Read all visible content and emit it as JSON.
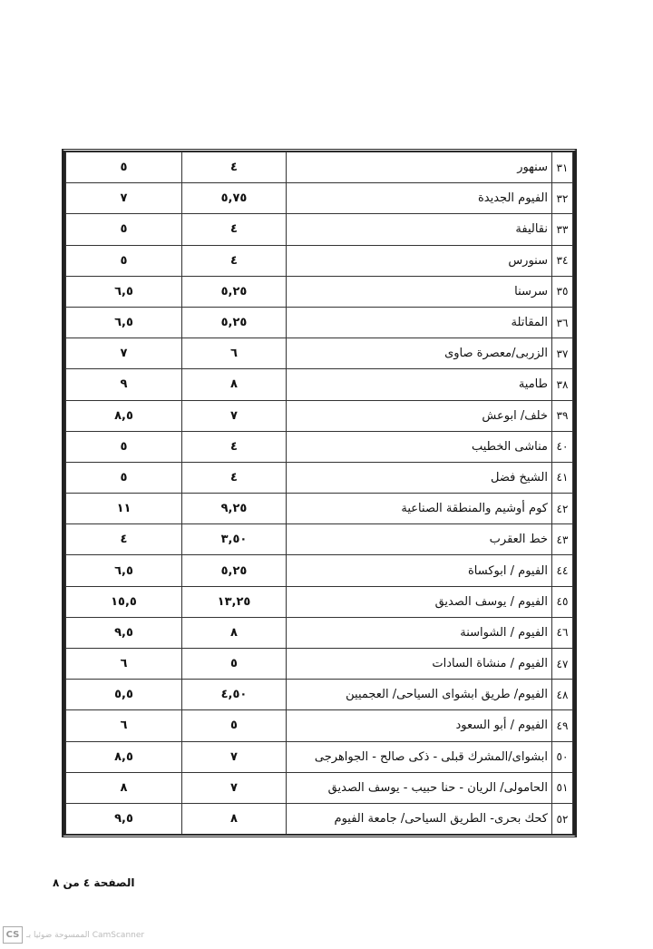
{
  "table": {
    "rows": [
      {
        "no": "٣١",
        "name": "سنهور",
        "value1": "٤",
        "value2": "٥"
      },
      {
        "no": "٣٢",
        "name": "الفيوم الجديدة",
        "value1": "٥,٧٥",
        "value2": "٧"
      },
      {
        "no": "٣٣",
        "name": "نقاليفة",
        "value1": "٤",
        "value2": "٥"
      },
      {
        "no": "٣٤",
        "name": "سنورس",
        "value1": "٤",
        "value2": "٥"
      },
      {
        "no": "٣٥",
        "name": "سرسنا",
        "value1": "٥,٢٥",
        "value2": "٦,٥"
      },
      {
        "no": "٣٦",
        "name": "المقاتلة",
        "value1": "٥,٢٥",
        "value2": "٦,٥"
      },
      {
        "no": "٣٧",
        "name": "الزربى/معصرة صاوى",
        "value1": "٦",
        "value2": "٧"
      },
      {
        "no": "٣٨",
        "name": "طامية",
        "value1": "٨",
        "value2": "٩"
      },
      {
        "no": "٣٩",
        "name": "خلف/ ابوعش",
        "value1": "٧",
        "value2": "٨,٥"
      },
      {
        "no": "٤٠",
        "name": "مناشى الخطيب",
        "value1": "٤",
        "value2": "٥"
      },
      {
        "no": "٤١",
        "name": "الشيخ فضل",
        "value1": "٤",
        "value2": "٥"
      },
      {
        "no": "٤٢",
        "name": "كوم أوشيم والمنطقة الصناعية",
        "value1": "٩,٢٥",
        "value2": "١١"
      },
      {
        "no": "٤٣",
        "name": "خط العقرب",
        "value1": "٣,٥٠",
        "value2": "٤"
      },
      {
        "no": "٤٤",
        "name": "الفيوم / ابوكساة",
        "value1": "٥,٢٥",
        "value2": "٦,٥"
      },
      {
        "no": "٤٥",
        "name": "الفيوم / يوسف الصديق",
        "value1": "١٣,٢٥",
        "value2": "١٥,٥"
      },
      {
        "no": "٤٦",
        "name": "الفيوم / الشواسنة",
        "value1": "٨",
        "value2": "٩,٥"
      },
      {
        "no": "٤٧",
        "name": "الفيوم / منشاة السادات",
        "value1": "٥",
        "value2": "٦"
      },
      {
        "no": "٤٨",
        "name": "الفيوم/ طريق ابشواى السياحى/ العجميين",
        "value1": "٤,٥٠",
        "value2": "٥,٥"
      },
      {
        "no": "٤٩",
        "name": "الفيوم / أبو السعود",
        "value1": "٥",
        "value2": "٦"
      },
      {
        "no": "٥٠",
        "name": "ابشواى/المشرك قبلى - ذكى صالح - الجواهرجى",
        "value1": "٧",
        "value2": "٨,٥"
      },
      {
        "no": "٥١",
        "name": "الحامولى/ الريان - حنا حبيب - يوسف الصديق",
        "value1": "٧",
        "value2": "٨"
      },
      {
        "no": "٥٢",
        "name": "كحك بحرى- الطريق السياحى/ جامعة الفيوم",
        "value1": "٨",
        "value2": "٩,٥"
      }
    ]
  },
  "footer": {
    "page_label": "الصفحة ٤ من ٨"
  },
  "watermark": {
    "logo": "CS",
    "text": "الممسوحة ضوئيا بـ CamScanner"
  }
}
